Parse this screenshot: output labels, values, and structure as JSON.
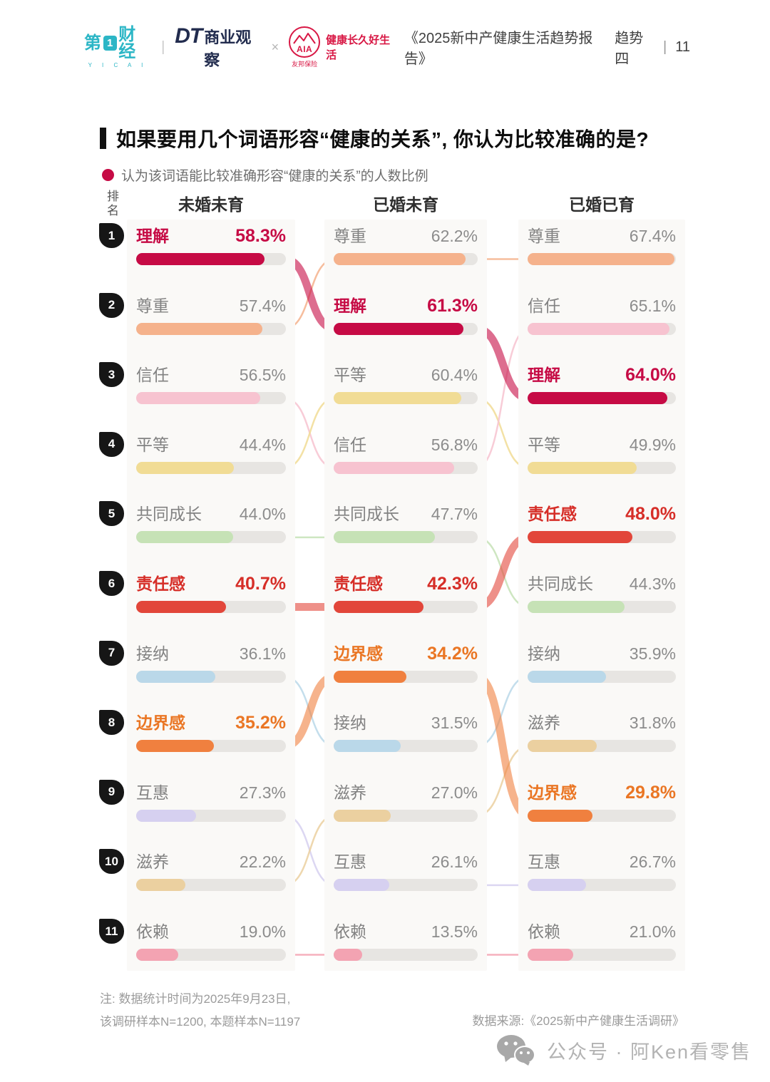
{
  "header": {
    "yicai_text": "第",
    "yicai_one": "1",
    "yicai_text2": "财经",
    "yicai_sub": "Y I C A I",
    "divider": "|",
    "dt_logo": "DT",
    "dt_rest": "商业观察",
    "cross": "×",
    "aia_name": "AIA",
    "aia_sub": "友邦保险",
    "aia_slogan": "健康长久好生活",
    "report_title": "《2025新中产健康生活趋势报告》",
    "section": "趋势四",
    "page_divider": "|",
    "page_number": "11"
  },
  "title": "如果要用几个词语形容“健康的关系”, 你认为比较准确的是?",
  "legend": "认为该词语能比较准确形容“健康的关系”的人数比例",
  "rank_label": "排名",
  "chart_data": {
    "type": "bar",
    "subtype": "ranked-bump-bars",
    "groups": [
      "未婚未育",
      "已婚未育",
      "已婚已育"
    ],
    "ranks": [
      1,
      2,
      3,
      4,
      5,
      6,
      7,
      8,
      9,
      10,
      11
    ],
    "highlight_words": [
      "理解",
      "责任感",
      "边界感"
    ],
    "bar_scale_max": 68,
    "columns": [
      {
        "group": "未婚未育",
        "items": [
          {
            "word": "理解",
            "value": 58.3
          },
          {
            "word": "尊重",
            "value": 57.4
          },
          {
            "word": "信任",
            "value": 56.5
          },
          {
            "word": "平等",
            "value": 44.4
          },
          {
            "word": "共同成长",
            "value": 44.0
          },
          {
            "word": "责任感",
            "value": 40.7
          },
          {
            "word": "接纳",
            "value": 36.1
          },
          {
            "word": "边界感",
            "value": 35.2
          },
          {
            "word": "互惠",
            "value": 27.3
          },
          {
            "word": "滋养",
            "value": 22.2
          },
          {
            "word": "依赖",
            "value": 19.0
          }
        ]
      },
      {
        "group": "已婚未育",
        "items": [
          {
            "word": "尊重",
            "value": 62.2
          },
          {
            "word": "理解",
            "value": 61.3
          },
          {
            "word": "平等",
            "value": 60.4
          },
          {
            "word": "信任",
            "value": 56.8
          },
          {
            "word": "共同成长",
            "value": 47.7
          },
          {
            "word": "责任感",
            "value": 42.3
          },
          {
            "word": "边界感",
            "value": 34.2
          },
          {
            "word": "接纳",
            "value": 31.5
          },
          {
            "word": "滋养",
            "value": 27.0
          },
          {
            "word": "互惠",
            "value": 26.1
          },
          {
            "word": "依赖",
            "value": 13.5
          }
        ]
      },
      {
        "group": "已婚已育",
        "items": [
          {
            "word": "尊重",
            "value": 67.4
          },
          {
            "word": "信任",
            "value": 65.1
          },
          {
            "word": "理解",
            "value": 64.0
          },
          {
            "word": "平等",
            "value": 49.9
          },
          {
            "word": "责任感",
            "value": 48.0
          },
          {
            "word": "共同成长",
            "value": 44.3
          },
          {
            "word": "接纳",
            "value": 35.9
          },
          {
            "word": "滋养",
            "value": 31.8
          },
          {
            "word": "边界感",
            "value": 29.8
          },
          {
            "word": "互惠",
            "value": 26.7
          },
          {
            "word": "依赖",
            "value": 21.0
          }
        ]
      }
    ],
    "word_colors": {
      "理解": "#c60b45",
      "尊重": "#f5b28c",
      "信任": "#f7c3d0",
      "平等": "#f1dc95",
      "共同成长": "#c6e2b6",
      "责任感": "#e2463a",
      "接纳": "#bad8e9",
      "边界感": "#f0803f",
      "互惠": "#d6d0f0",
      "滋养": "#ebd0a0",
      "依赖": "#f3a3b2"
    },
    "highlight_text_colors": {
      "理解": "#c60b45",
      "责任感": "#d62e28",
      "边界感": "#ea7624"
    }
  },
  "footnote": {
    "line1": "注: 数据统计时间为2025年9月23日,",
    "line2": "该调研样本N=1200, 本题样本N=1197",
    "source": "数据来源:《2025新中产健康生活调研》"
  },
  "watermark": "公众号 · 阿Ken看零售"
}
